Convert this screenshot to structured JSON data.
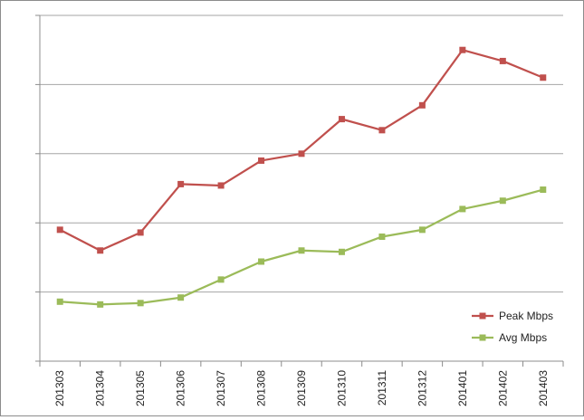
{
  "chart_data": {
    "type": "line",
    "title": "",
    "xlabel": "",
    "ylabel": "",
    "categories": [
      "201303",
      "201304",
      "201305",
      "201306",
      "201307",
      "201308",
      "201309",
      "201310",
      "201311",
      "201312",
      "201401",
      "201402",
      "201403"
    ],
    "ylim": [
      0,
      25
    ],
    "grid": "horizontal",
    "y_tick_labels_visible": false,
    "legend_position": "bottom-right",
    "series": [
      {
        "name": "Peak Mbps",
        "color": "#c0504d",
        "marker": "square",
        "values": [
          9.5,
          8.0,
          9.3,
          12.8,
          12.7,
          14.5,
          15.0,
          17.5,
          16.7,
          18.5,
          22.5,
          21.7,
          20.5
        ]
      },
      {
        "name": "Avg Mbps",
        "color": "#9bbb59",
        "marker": "square",
        "values": [
          4.3,
          4.1,
          4.2,
          4.6,
          5.9,
          7.2,
          8.0,
          7.9,
          9.0,
          9.5,
          11.0,
          11.6,
          12.4
        ]
      }
    ]
  }
}
